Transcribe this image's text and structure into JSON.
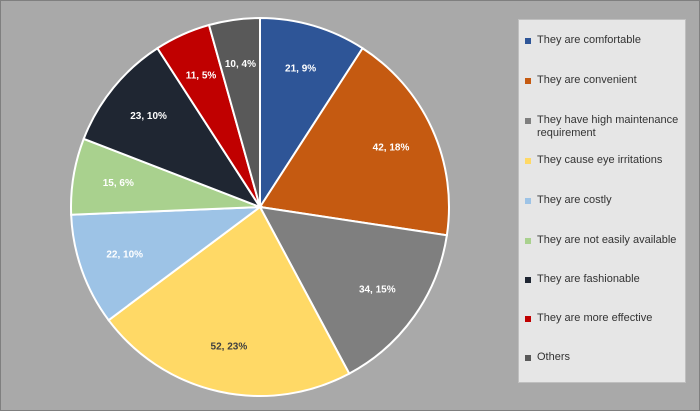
{
  "chart_data": {
    "type": "pie",
    "categories": [
      "They are comfortable",
      "They are convenient",
      "They have high maintenance requirement",
      "They cause eye irritations",
      "They are costly",
      "They are not easily available",
      "They are fashionable",
      "They are more effective",
      "Others"
    ],
    "values": [
      21,
      42,
      34,
      52,
      22,
      15,
      23,
      11,
      10
    ],
    "data_labels": [
      "21, 9%",
      "42, 18%",
      "34, 15%",
      "52, 23%",
      "22, 10%",
      "15, 6%",
      "23, 10%",
      "11, 5%",
      "10, 4%"
    ],
    "colors": [
      "#2e5597",
      "#c55a11",
      "#7f7f7f",
      "#ffd966",
      "#9dc3e6",
      "#a9d18e",
      "#1f2632",
      "#c00000",
      "#595959"
    ],
    "label_colors": [
      "#ffffff",
      "#ffffff",
      "#ffffff",
      "#404040",
      "#ffffff",
      "#ffffff",
      "#ffffff",
      "#ffffff",
      "#ffffff"
    ],
    "legend_position": "right"
  }
}
